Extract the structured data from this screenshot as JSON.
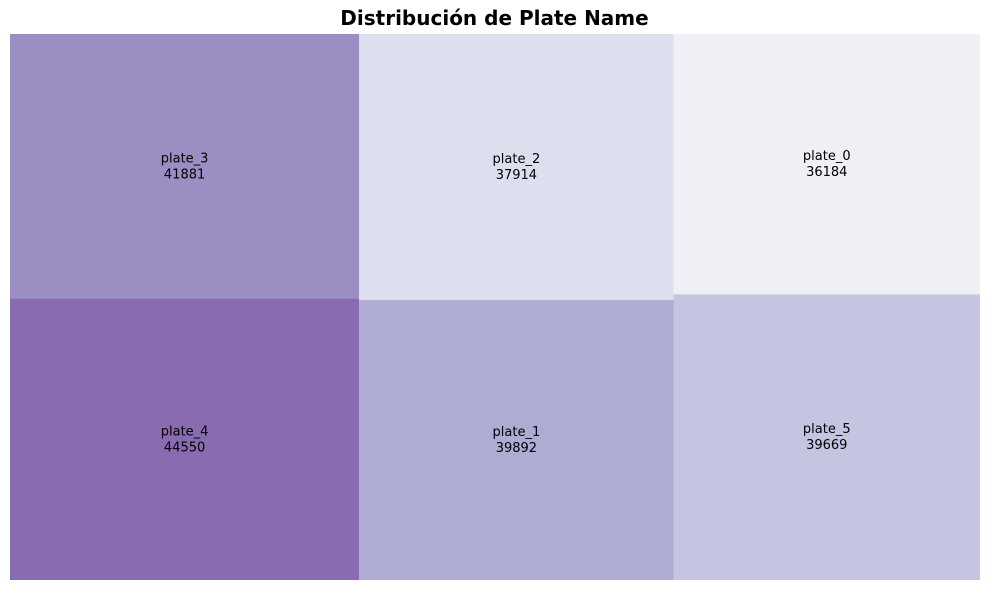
{
  "chart_data": {
    "type": "treemap",
    "title": "Distribución de Plate Name",
    "items": [
      {
        "label": "plate_3",
        "value": 41881,
        "color": "#9b8ec3"
      },
      {
        "label": "plate_4",
        "value": 44550,
        "color": "#886bb0"
      },
      {
        "label": "plate_2",
        "value": 37914,
        "color": "#dddfee"
      },
      {
        "label": "plate_1",
        "value": 39892,
        "color": "#aeacd2"
      },
      {
        "label": "plate_0",
        "value": 36184,
        "color": "#efeff5"
      },
      {
        "label": "plate_5",
        "value": 39669,
        "color": "#c5c4e1"
      }
    ]
  }
}
